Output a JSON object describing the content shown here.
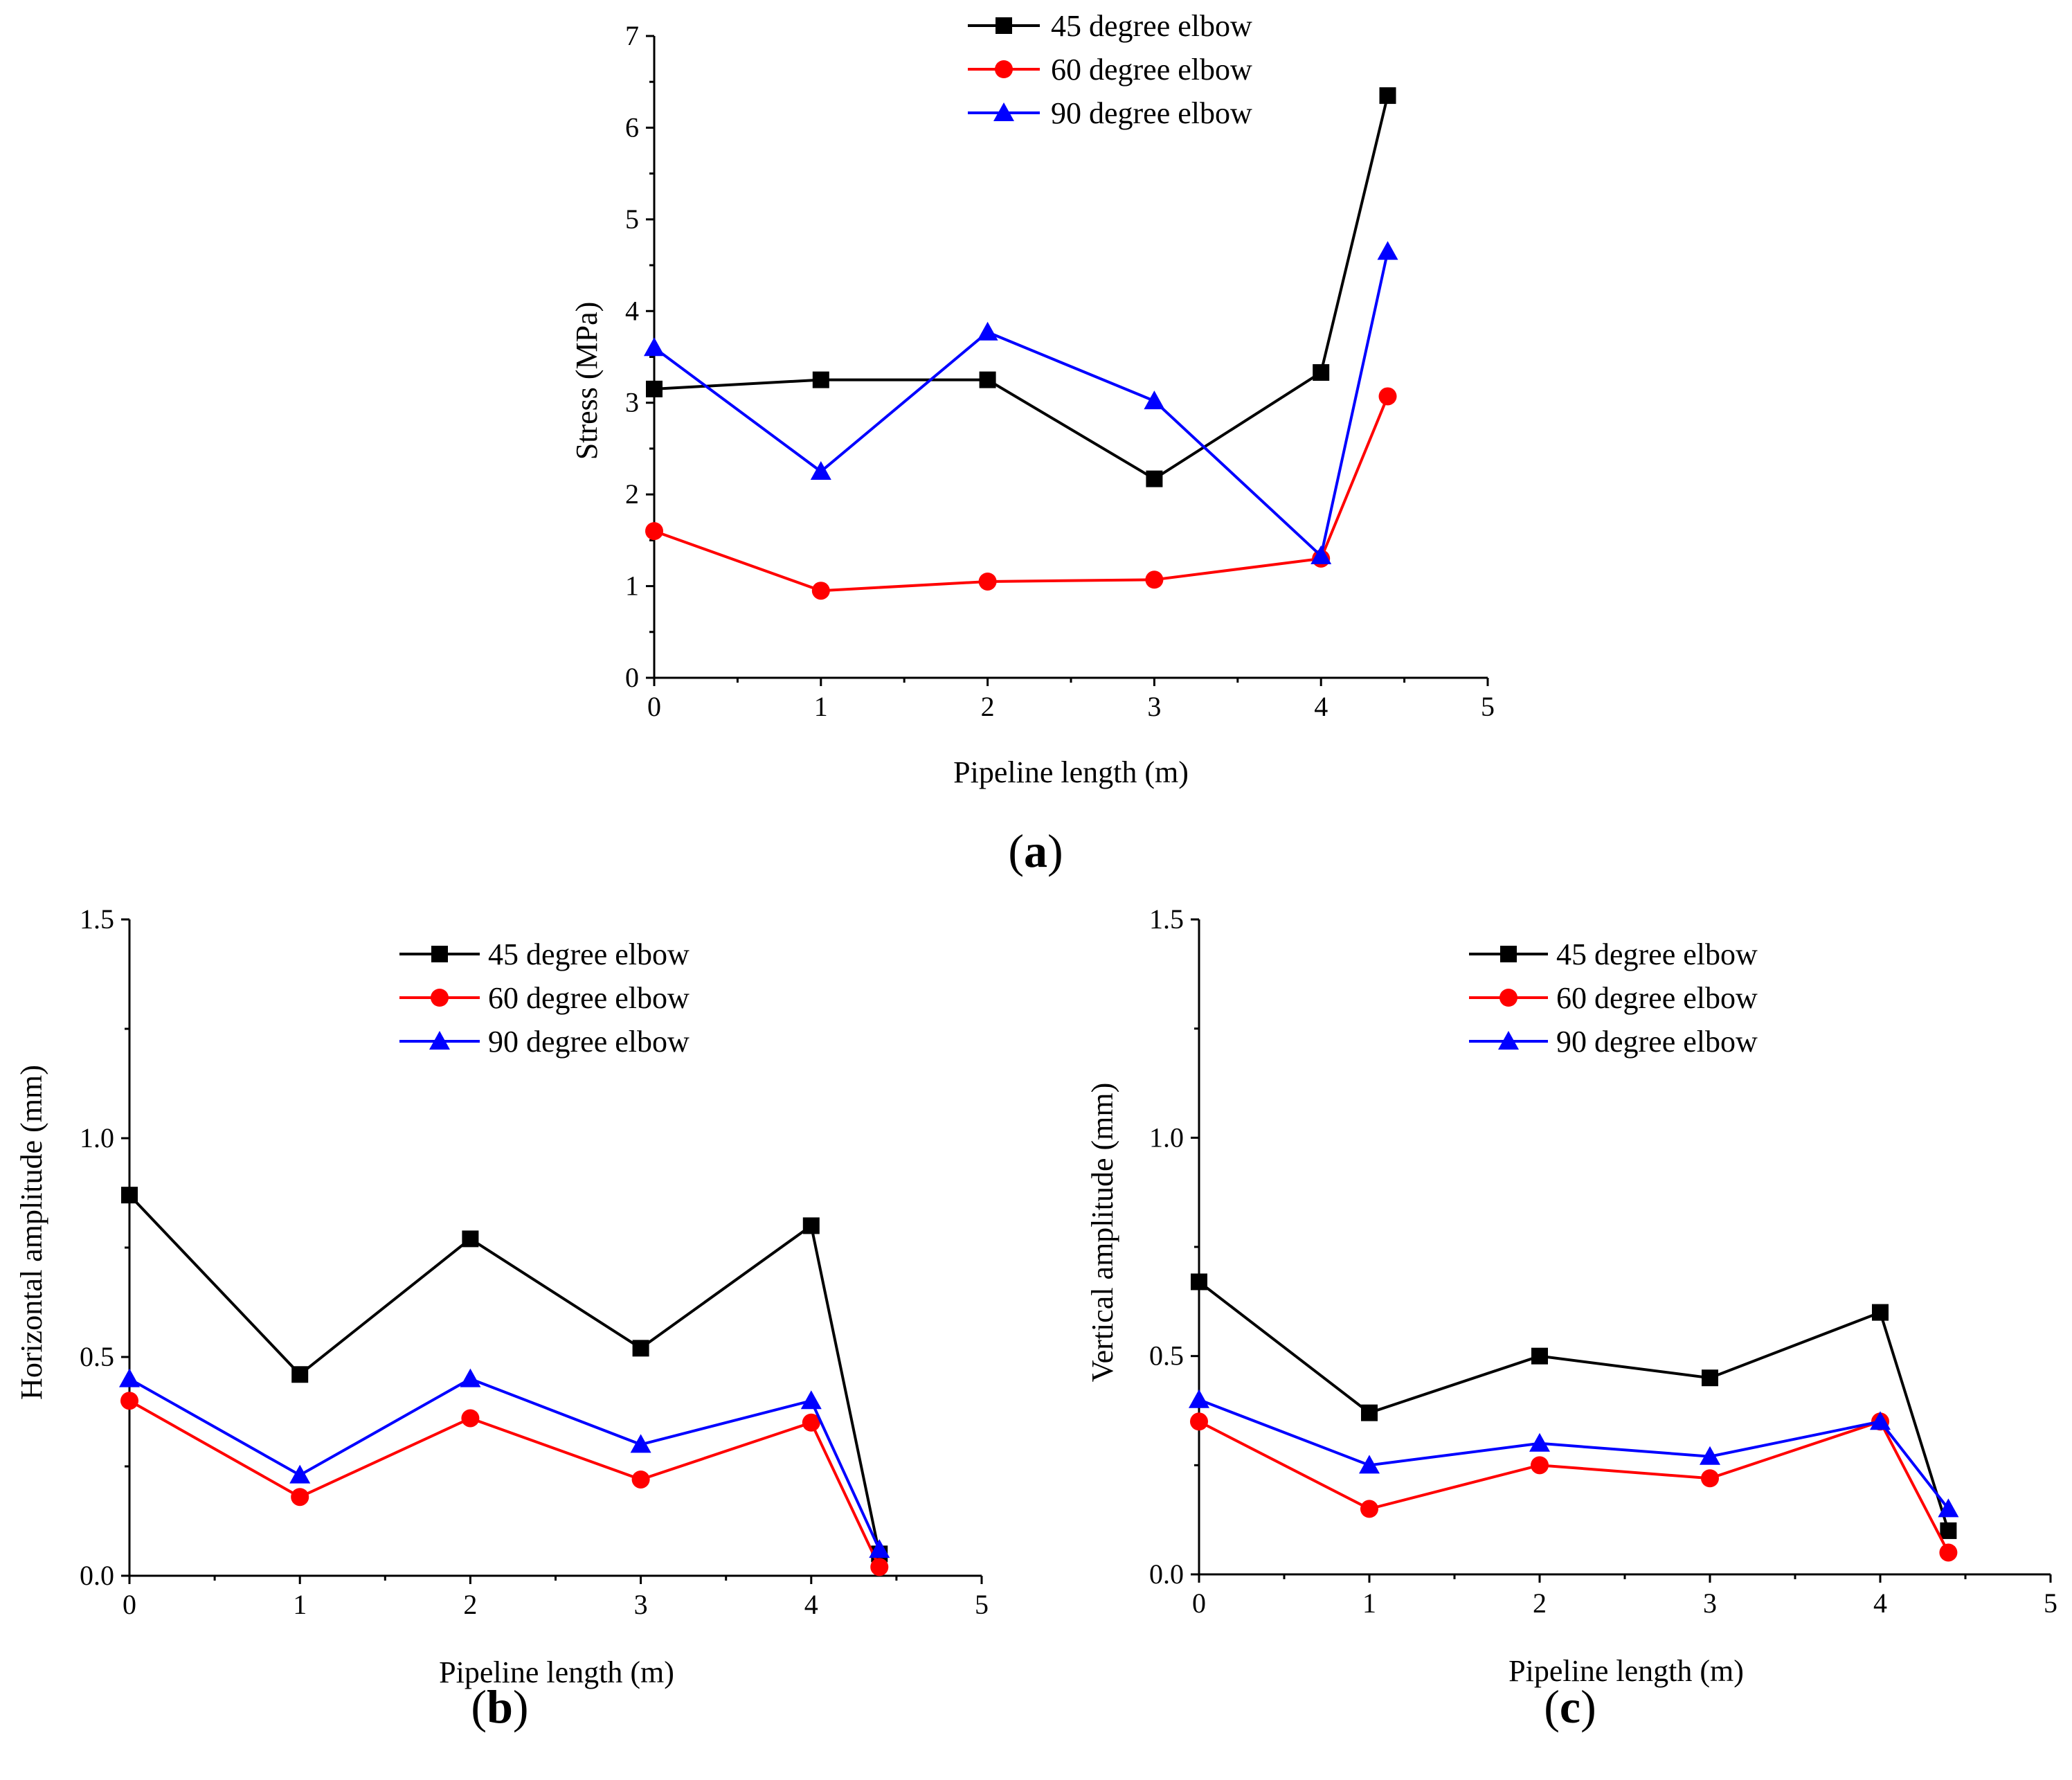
{
  "figure": {
    "panel_labels": [
      {
        "open": "(",
        "letter": "a",
        "close": ")"
      },
      {
        "open": "(",
        "letter": "b",
        "close": ")"
      },
      {
        "open": "(",
        "letter": "c",
        "close": ")"
      }
    ]
  },
  "colors": {
    "series_45": "#000000",
    "series_60": "#ff0000",
    "series_90": "#0000ff",
    "axis": "#000000"
  },
  "chart_data": [
    {
      "id": "a",
      "type": "line",
      "xlabel": "Pipeline length (m)",
      "ylabel": "Stress (MPa)",
      "xlim": [
        0,
        5
      ],
      "ylim": [
        0,
        7
      ],
      "xticks": [
        0,
        1,
        2,
        3,
        4,
        5
      ],
      "yticks": [
        0,
        1,
        2,
        3,
        4,
        5,
        6,
        7
      ],
      "ytick_labels": [
        "0",
        "1",
        "2",
        "3",
        "4",
        "5",
        "6",
        "7"
      ],
      "legend_position": "top-center",
      "grid": false,
      "x": [
        0,
        1,
        2,
        3,
        4,
        4.4
      ],
      "series": [
        {
          "name": "45 degree elbow",
          "marker": "square",
          "color": "#000000",
          "values": [
            3.15,
            3.25,
            3.25,
            2.17,
            3.33,
            6.35
          ]
        },
        {
          "name": "60 degree elbow",
          "marker": "circle",
          "color": "#ff0000",
          "values": [
            1.6,
            0.95,
            1.05,
            1.07,
            1.3,
            3.07
          ]
        },
        {
          "name": "90 degree elbow",
          "marker": "triangle",
          "color": "#0000ff",
          "values": [
            3.6,
            2.25,
            3.77,
            3.02,
            1.33,
            4.65
          ]
        }
      ]
    },
    {
      "id": "b",
      "type": "line",
      "xlabel": "Pipeline length (m)",
      "ylabel": "Horizontal amplitude (mm)",
      "xlim": [
        0,
        5
      ],
      "ylim": [
        0,
        1.5
      ],
      "xticks": [
        0,
        1,
        2,
        3,
        4,
        5
      ],
      "yticks": [
        0,
        0.5,
        1.0,
        1.5
      ],
      "ytick_labels": [
        "0.0",
        "0.5",
        "1.0",
        "1.5"
      ],
      "legend_position": "top-center",
      "grid": false,
      "x": [
        0,
        1,
        2,
        3,
        4,
        4.4
      ],
      "series": [
        {
          "name": "45 degree elbow",
          "marker": "square",
          "color": "#000000",
          "values": [
            0.87,
            0.46,
            0.77,
            0.52,
            0.8,
            0.05
          ]
        },
        {
          "name": "60 degree elbow",
          "marker": "circle",
          "color": "#ff0000",
          "values": [
            0.4,
            0.18,
            0.36,
            0.22,
            0.35,
            0.02
          ]
        },
        {
          "name": "90 degree elbow",
          "marker": "triangle",
          "color": "#0000ff",
          "values": [
            0.45,
            0.23,
            0.45,
            0.3,
            0.4,
            0.06
          ]
        }
      ]
    },
    {
      "id": "c",
      "type": "line",
      "xlabel": "Pipeline length (m)",
      "ylabel": "Vertical amplitude (mm)",
      "xlim": [
        0,
        5
      ],
      "ylim": [
        0,
        1.5
      ],
      "xticks": [
        0,
        1,
        2,
        3,
        4,
        5
      ],
      "yticks": [
        0,
        0.5,
        1.0,
        1.5
      ],
      "ytick_labels": [
        "0.0",
        "0.5",
        "1.0",
        "1.5"
      ],
      "legend_position": "top-center",
      "grid": false,
      "x": [
        0,
        1,
        2,
        3,
        4,
        4.4
      ],
      "series": [
        {
          "name": "45 degree elbow",
          "marker": "square",
          "color": "#000000",
          "values": [
            0.67,
            0.37,
            0.5,
            0.45,
            0.6,
            0.1
          ]
        },
        {
          "name": "60 degree elbow",
          "marker": "circle",
          "color": "#ff0000",
          "values": [
            0.35,
            0.15,
            0.25,
            0.22,
            0.35,
            0.05
          ]
        },
        {
          "name": "90 degree elbow",
          "marker": "triangle",
          "color": "#0000ff",
          "values": [
            0.4,
            0.25,
            0.3,
            0.27,
            0.35,
            0.15
          ]
        }
      ]
    }
  ]
}
